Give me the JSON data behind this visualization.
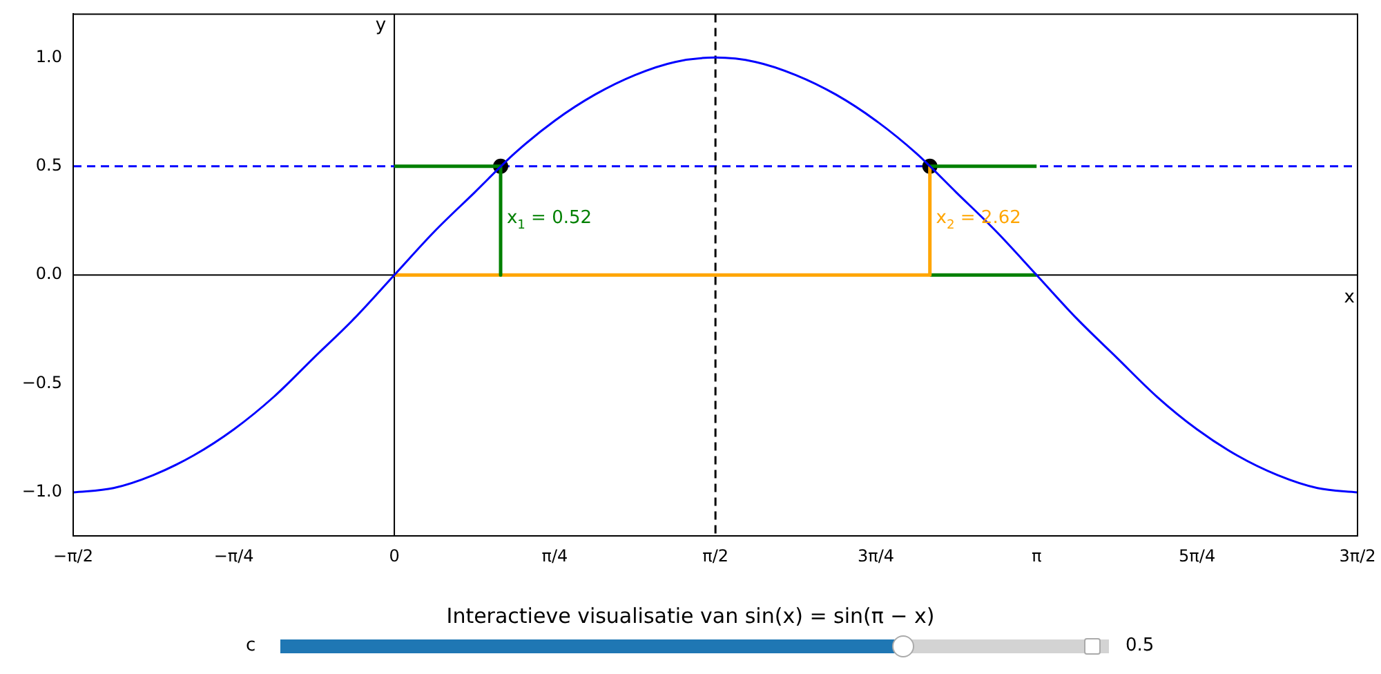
{
  "chart_data": {
    "type": "line",
    "title": "Interactieve visualisatie van sin(x) = sin(π − x)",
    "xlabel": "x",
    "ylabel": "y",
    "xlim": [
      -1.571,
      4.712
    ],
    "ylim": [
      -1.2,
      1.2
    ],
    "xticks": [
      {
        "value": -1.571,
        "label": "−π/2"
      },
      {
        "value": -0.785,
        "label": "−π/4"
      },
      {
        "value": 0,
        "label": "0"
      },
      {
        "value": 0.785,
        "label": "π/4"
      },
      {
        "value": 1.571,
        "label": "π/2"
      },
      {
        "value": 2.356,
        "label": "3π/4"
      },
      {
        "value": 3.142,
        "label": "π"
      },
      {
        "value": 3.927,
        "label": "5π/4"
      },
      {
        "value": 4.712,
        "label": "3π/2"
      }
    ],
    "yticks": [
      {
        "value": -1,
        "label": "−1.0"
      },
      {
        "value": -0.5,
        "label": "−0.5"
      },
      {
        "value": 0,
        "label": "0.0"
      },
      {
        "value": 0.5,
        "label": "0.5"
      },
      {
        "value": 1,
        "label": "1.0"
      }
    ],
    "grid": false,
    "legend": false,
    "series": [
      {
        "color": "#0000ff",
        "x": [
          -1.571,
          -1.374,
          -1.178,
          -0.982,
          -0.785,
          -0.589,
          -0.393,
          -0.196,
          0,
          0.196,
          0.393,
          0.589,
          0.785,
          0.982,
          1.178,
          1.374,
          1.571,
          1.767,
          1.963,
          2.16,
          2.356,
          2.553,
          2.749,
          2.945,
          3.142,
          3.338,
          3.534,
          3.731,
          3.927,
          4.123,
          4.32,
          4.516,
          4.712
        ],
        "values": [
          -1,
          -0.98,
          -0.92,
          -0.83,
          -0.71,
          -0.56,
          -0.38,
          -0.2,
          0,
          0.2,
          0.38,
          0.56,
          0.71,
          0.83,
          0.92,
          0.98,
          1,
          0.98,
          0.92,
          0.83,
          0.71,
          0.56,
          0.38,
          0.2,
          0,
          -0.2,
          -0.38,
          -0.56,
          -0.71,
          -0.83,
          -0.92,
          -0.98,
          -1
        ]
      },
      {
        "color": "#008000",
        "x": [
          0,
          0.52,
          0.52
        ],
        "values": [
          0.5,
          0.5,
          0
        ]
      },
      {
        "color": "#ffa500",
        "x": [
          0,
          2.62,
          2.62
        ],
        "values": [
          0,
          0,
          0.5
        ]
      },
      {
        "color": "#008000",
        "x": [
          2.62,
          3.142
        ],
        "values": [
          0.5,
          0.5
        ]
      },
      {
        "color": "#008000",
        "x": [
          2.62,
          3.142
        ],
        "values": [
          0,
          0
        ]
      },
      {
        "type": "scatter",
        "color": "#000000",
        "marker": "circle",
        "x": [
          0.52,
          2.62
        ],
        "values": [
          0.5,
          0.5
        ]
      }
    ],
    "ref_lines": [
      {
        "axis": "x",
        "value": 0,
        "color": "#000000",
        "line_style": "solid"
      },
      {
        "axis": "y",
        "value": 0,
        "color": "#000000",
        "line_style": "solid"
      },
      {
        "axis": "y",
        "value": 0.5,
        "color": "#0000ff",
        "line_style": "dashed"
      },
      {
        "axis": "x",
        "value": 1.571,
        "color": "#000000",
        "line_style": "dashed"
      }
    ],
    "annotations": [
      {
        "text": "x$_{1}$ = 0.52",
        "x": 0.55,
        "y": 0.27
      },
      {
        "text": "x$_{2}$ = 2.62",
        "x": 2.65,
        "y": 0.27
      },
      "c",
      "0.5"
    ]
  }
}
